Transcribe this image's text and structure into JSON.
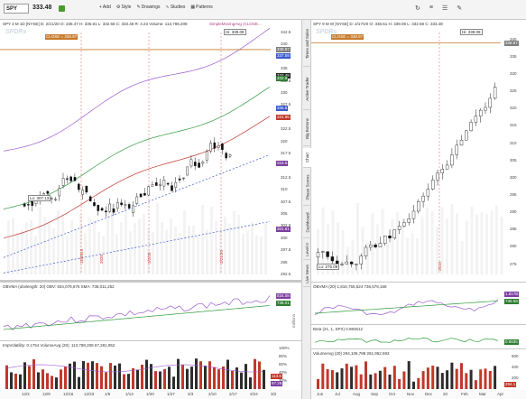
{
  "toolbar": {
    "symbol": "SPY",
    "price": "333.48",
    "buttons": [
      "Add",
      "Style",
      "Drawings",
      "Studies",
      "Patterns"
    ],
    "right_icons": [
      "↻",
      "≡",
      "☰",
      "✎"
    ]
  },
  "left_chart": {
    "header": "SPY 3 M 1D [NYSE]  D: 2/21/20  O: 335.47  H: 335.81  L: 332.58  C: 333.48  R: 3.23  Volume: 113,788,208",
    "study": "SimpleMovingAvg (CLOSE...",
    "close_tag": "CLOSE = 338.97",
    "hi_label": "Hi: 339.08",
    "lo_label": "Lo: 307.13",
    "y_ticks": [
      "342.5",
      "340",
      "337.5",
      "335",
      "332.5",
      "330",
      "327.5",
      "325",
      "322.5",
      "320",
      "317.5",
      "315",
      "312.5",
      "310",
      "307.5",
      "305",
      "302.5",
      "300",
      "297.5",
      "295",
      "292.5"
    ],
    "price_tags": [
      {
        "text": "338.97",
        "color": "#7f7f7f",
        "value": 338.97
      },
      {
        "text": "337.59",
        "color": "#3a59d0",
        "value": 337.59
      },
      {
        "text": "333.48",
        "color": "#222222",
        "value": 333.48
      },
      {
        "text": "332.9",
        "color": "#2e7d32",
        "value": 332.9
      },
      {
        "text": "326.8",
        "color": "#3a59d0",
        "value": 326.8
      },
      {
        "text": "324.96",
        "color": "#c0392b",
        "value": 324.96
      },
      {
        "text": "315.5",
        "color": "#7b3fa0",
        "value": 315.5
      },
      {
        "text": "301.81",
        "color": "#7b3fa0",
        "value": 301.81
      }
    ],
    "date_markers": [
      "12/2019",
      "2020",
      "2/2/20",
      "2/21/20"
    ],
    "x_ticks": [
      "12/2",
      "12/9",
      "12/16",
      "12/23",
      "1/6",
      "1/13",
      "1/20",
      "1/27",
      "2/3",
      "2/10",
      "2/17",
      "2/24",
      "3/2"
    ]
  },
  "left_obv": {
    "header": "OBVMA (obvlength: 20)  OBV: 834,078,676   SMA: 738,011,252",
    "tags": [
      {
        "text": "834.08",
        "color": "#7b3fa0"
      },
      {
        "text": "738.01",
        "color": "#2e7d32"
      }
    ],
    "unit": "millions"
  },
  "left_vol": {
    "header": "ImpVolatility: 0.1754   VolumeAvg (20): 113,788,208   67,281,952",
    "ticks": [
      "100%",
      "80%",
      "60%",
      "40%",
      "20%"
    ],
    "tags": [
      {
        "text": "113.8",
        "color": "#c0392b"
      },
      {
        "text": "67.28",
        "color": "#7b3fa0"
      }
    ]
  },
  "vtabs": [
    "Times and Sales",
    "Active Trader",
    "Big Buttons",
    "Chart",
    "Phase Scores",
    "Dashboard",
    "Level II",
    "Live News"
  ],
  "right_chart": {
    "header": "SPY 9 M W [NYSE]  D: 2/17/20  O: 336.51  H: 339.08  L: 332.58  C: 333.48",
    "close_tag": "CLOSE = 338.97",
    "hi_label": "Hi: 339.08",
    "lo_label": "Lo: 275.09",
    "y_ticks": [
      "340",
      "335",
      "330",
      "325",
      "320",
      "315",
      "310",
      "305",
      "300",
      "295",
      "290",
      "285",
      "280",
      "275"
    ],
    "price_tags": [
      {
        "text": "338.97",
        "color": "#7f7f7f",
        "value": 338.97
      }
    ],
    "date_markers": [
      "2019"
    ],
    "x_ticks": [
      "Jun",
      "Jul",
      "Aug",
      "Sep",
      "Oct",
      "Nov",
      "Dec",
      "20",
      "Feb",
      "Mar",
      "Apr"
    ]
  },
  "right_obv": {
    "header": "OBVMA (20)  1,816,755,524   736,579,168",
    "tags": [
      {
        "text": "1.817B",
        "color": "#7b3fa0"
      },
      {
        "text": "736.58",
        "color": "#2e7d32"
      }
    ]
  },
  "right_beta": {
    "header": "Beta (21, 1, SPX)  0.983512",
    "tags": [
      {
        "text": "0.9835",
        "color": "#2e7d32"
      }
    ]
  },
  "right_vol": {
    "header": "VolumeAvg (20)  294,106,788   261,952,593",
    "ticks": [
      "600",
      "400",
      "200"
    ],
    "tags": [
      {
        "text": "294.1",
        "color": "#c0392b"
      }
    ]
  }
}
